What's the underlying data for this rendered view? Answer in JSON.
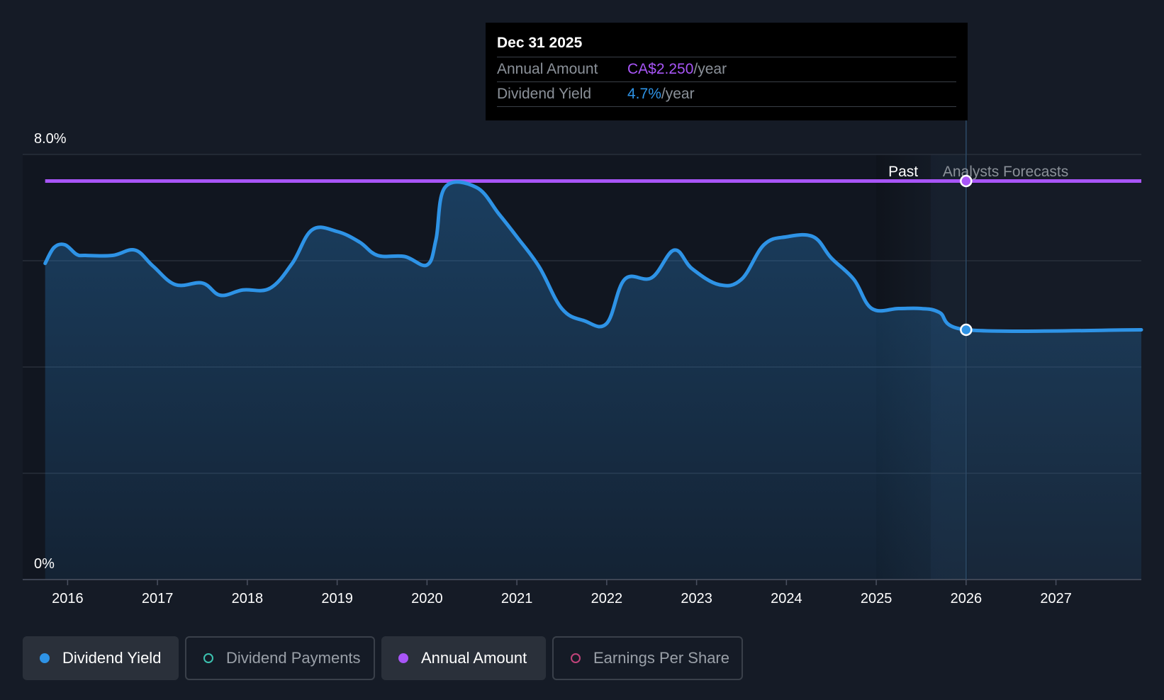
{
  "tooltip": {
    "date": "Dec 31 2025",
    "rows": [
      {
        "label": "Annual Amount",
        "value": "CA$2.250",
        "unit": "/year"
      },
      {
        "label": "Dividend Yield",
        "value": "4.7%",
        "unit": "/year"
      }
    ]
  },
  "regions": {
    "past": "Past",
    "forecast": "Analysts Forecasts"
  },
  "legend": [
    {
      "label": "Dividend Yield",
      "color": "#2e93e6",
      "style": "filled",
      "active": true
    },
    {
      "label": "Dividend Payments",
      "color": "#3cc2b0",
      "style": "outline",
      "active": false
    },
    {
      "label": "Annual Amount",
      "color": "#a855f7",
      "style": "filled",
      "active": true
    },
    {
      "label": "Earnings Per Share",
      "color": "#c0437a",
      "style": "outline",
      "active": false
    }
  ],
  "colors": {
    "yield": "#2e93e6",
    "annual": "#a855f7",
    "background": "#151b26"
  },
  "chart_data": {
    "type": "area",
    "y_tick_labels": [
      "0%",
      "8.0%"
    ],
    "ylim": [
      0,
      8
    ],
    "xlim": [
      2015.5,
      2027.95
    ],
    "x_tick_labels": [
      "2016",
      "2017",
      "2018",
      "2019",
      "2020",
      "2021",
      "2022",
      "2023",
      "2024",
      "2025",
      "2026",
      "2027"
    ],
    "x_ticks": [
      2016,
      2017,
      2018,
      2019,
      2020,
      2021,
      2022,
      2023,
      2024,
      2025,
      2026,
      2027
    ],
    "past_end": 2026.0,
    "forecast_shade_start": 2025.0,
    "series": [
      {
        "name": "Dividend Yield",
        "unit": "%",
        "x": [
          2015.75,
          2015.85,
          2015.97,
          2016.1,
          2016.2,
          2016.5,
          2016.75,
          2016.95,
          2017.2,
          2017.5,
          2017.7,
          2017.95,
          2018.25,
          2018.5,
          2018.72,
          2019.0,
          2019.25,
          2019.45,
          2019.75,
          2020.0,
          2020.1,
          2020.2,
          2020.55,
          2020.8,
          2021.0,
          2021.25,
          2021.5,
          2021.75,
          2022.0,
          2022.2,
          2022.5,
          2022.75,
          2022.95,
          2023.25,
          2023.5,
          2023.75,
          2024.0,
          2024.3,
          2024.5,
          2024.75,
          2024.95,
          2025.25,
          2025.5,
          2025.7,
          2026.0,
          2027.95
        ],
        "values": [
          5.95,
          6.25,
          6.3,
          6.12,
          6.1,
          6.1,
          6.2,
          5.9,
          5.55,
          5.58,
          5.35,
          5.45,
          5.48,
          5.95,
          6.58,
          6.55,
          6.35,
          6.1,
          6.08,
          5.92,
          6.4,
          7.38,
          7.38,
          6.88,
          6.45,
          5.88,
          5.1,
          4.87,
          4.82,
          5.65,
          5.68,
          6.2,
          5.85,
          5.55,
          5.65,
          6.3,
          6.45,
          6.45,
          6.05,
          5.65,
          5.1,
          5.1,
          5.1,
          5.03,
          4.7,
          4.7
        ]
      },
      {
        "name": "Annual Amount",
        "unit": "CA$",
        "x": [
          2015.75,
          2026.0,
          2027.95
        ],
        "values": [
          2.25,
          2.25,
          2.25
        ],
        "display_level_pct_axis": 7.5
      }
    ],
    "highlight": {
      "x": 2026.0,
      "yield": 4.7,
      "annual": 2.25
    }
  }
}
